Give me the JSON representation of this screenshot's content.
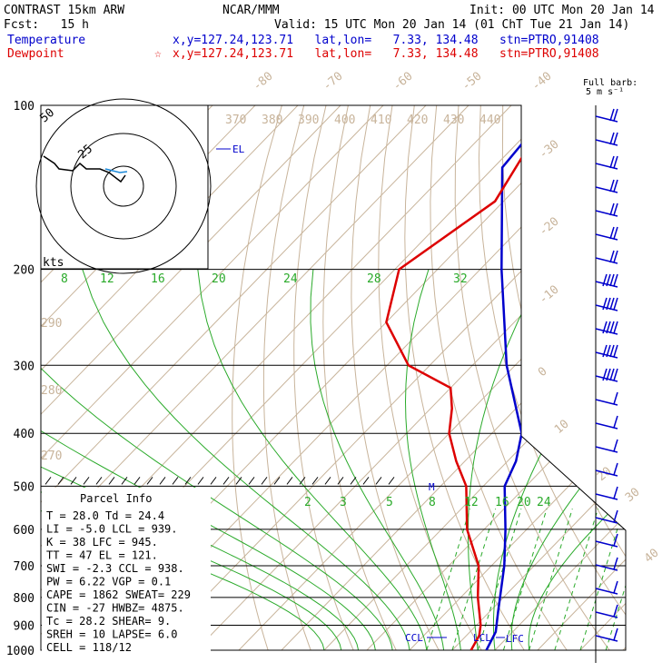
{
  "header": {
    "model": "CONTRAST 15km ARW",
    "org": "NCAR/MMM",
    "init": "Init: 00 UTC Mon 20 Jan 14",
    "fcst": "Fcst:   15 h",
    "valid": "Valid: 15 UTC Mon 20 Jan 14 (01 ChT Tue 21 Jan 14)",
    "temperature_label": "Temperature",
    "dewpoint_label": "Dewpoint",
    "temp_loc": "x,y=127.24,123.71   lat,lon=   7.33, 134.48   stn=PTRO,91408",
    "dewp_loc": "x,y=127.24,123.71   lat,lon=   7.33, 134.48   stn=PTRO,91408",
    "star": "☆"
  },
  "full_barb": "Full barb:",
  "full_barb_unit": "5 m s⁻¹",
  "hodograph": {
    "ring_label_outer": "50",
    "ring_label_inner": "25",
    "units": "kts"
  },
  "level_labels": {
    "el": "EL",
    "ccl": "CCL",
    "lcl": "LCL",
    "lfc": "LFC",
    "m": "M"
  },
  "parcel_info": {
    "title": "Parcel Info",
    "rows": [
      "T  =    28.0 Td =  24.4",
      "LI =    -5.0 LCL =  939.",
      "K  =      38 LFC =  945.",
      "TT =      47 EL  =  121.",
      "SWI =   -2.3 CCL =  938.",
      "PW =    6.22 VGP =   0.1",
      "CAPE =  1862 SWEAT=  229",
      "CIN =    -27 HWBZ= 4875.",
      "Tc =    28.2 SHEAR=    9.",
      "SREH =    10 LAPSE=  6.0",
      "CELL = 118/12"
    ]
  },
  "chart_data": {
    "type": "line",
    "title": "",
    "ylabel": "",
    "xlabel": "",
    "y_axis": "pressure",
    "pressure_ticks": [
      "100",
      "200",
      "300",
      "400",
      "500",
      "600",
      "700",
      "800",
      "900",
      "1000"
    ],
    "isotherm_labels": [
      "-80",
      "-70",
      "-60",
      "-50",
      "-40",
      "-30",
      "-20",
      "-10",
      "0",
      "10",
      "20",
      "30",
      "40"
    ],
    "theta_labels": [
      "370",
      "380",
      "390",
      "400",
      "410",
      "420",
      "430",
      "440",
      "290",
      "280",
      "270"
    ],
    "mixing_ratio_upper": [
      "8",
      "12",
      "16",
      "20",
      "24",
      "28",
      "32"
    ],
    "mixing_ratio_lower": [
      "2",
      "3",
      "5",
      "8",
      "12",
      "16",
      "20",
      "24"
    ],
    "series": [
      {
        "name": "Temperature",
        "color": "#0000cc",
        "points": [
          [
            100,
            -80
          ],
          [
            130,
            -78
          ],
          [
            200,
            -55
          ],
          [
            300,
            -32
          ],
          [
            400,
            -13
          ],
          [
            450,
            -8
          ],
          [
            500,
            -5
          ],
          [
            600,
            5
          ],
          [
            700,
            13
          ],
          [
            850,
            22
          ],
          [
            925,
            26
          ],
          [
            1000,
            28
          ]
        ]
      },
      {
        "name": "Dewpoint",
        "color": "#dd0000",
        "points": [
          [
            100,
            -80
          ],
          [
            150,
            -72
          ],
          [
            200,
            -79
          ],
          [
            250,
            -70
          ],
          [
            300,
            -55
          ],
          [
            330,
            -40
          ],
          [
            360,
            -35
          ],
          [
            400,
            -30
          ],
          [
            450,
            -22
          ],
          [
            500,
            -14
          ],
          [
            600,
            -4
          ],
          [
            700,
            7
          ],
          [
            800,
            14
          ],
          [
            900,
            21
          ],
          [
            940,
            23
          ],
          [
            1000,
            24.4
          ]
        ]
      }
    ],
    "colors": {
      "temperature": "#0000cc",
      "dewpoint": "#dd0000",
      "isotherm": "#c8b49b",
      "mixing_ratio": "#2aaa2a",
      "grid": "#000000"
    }
  }
}
